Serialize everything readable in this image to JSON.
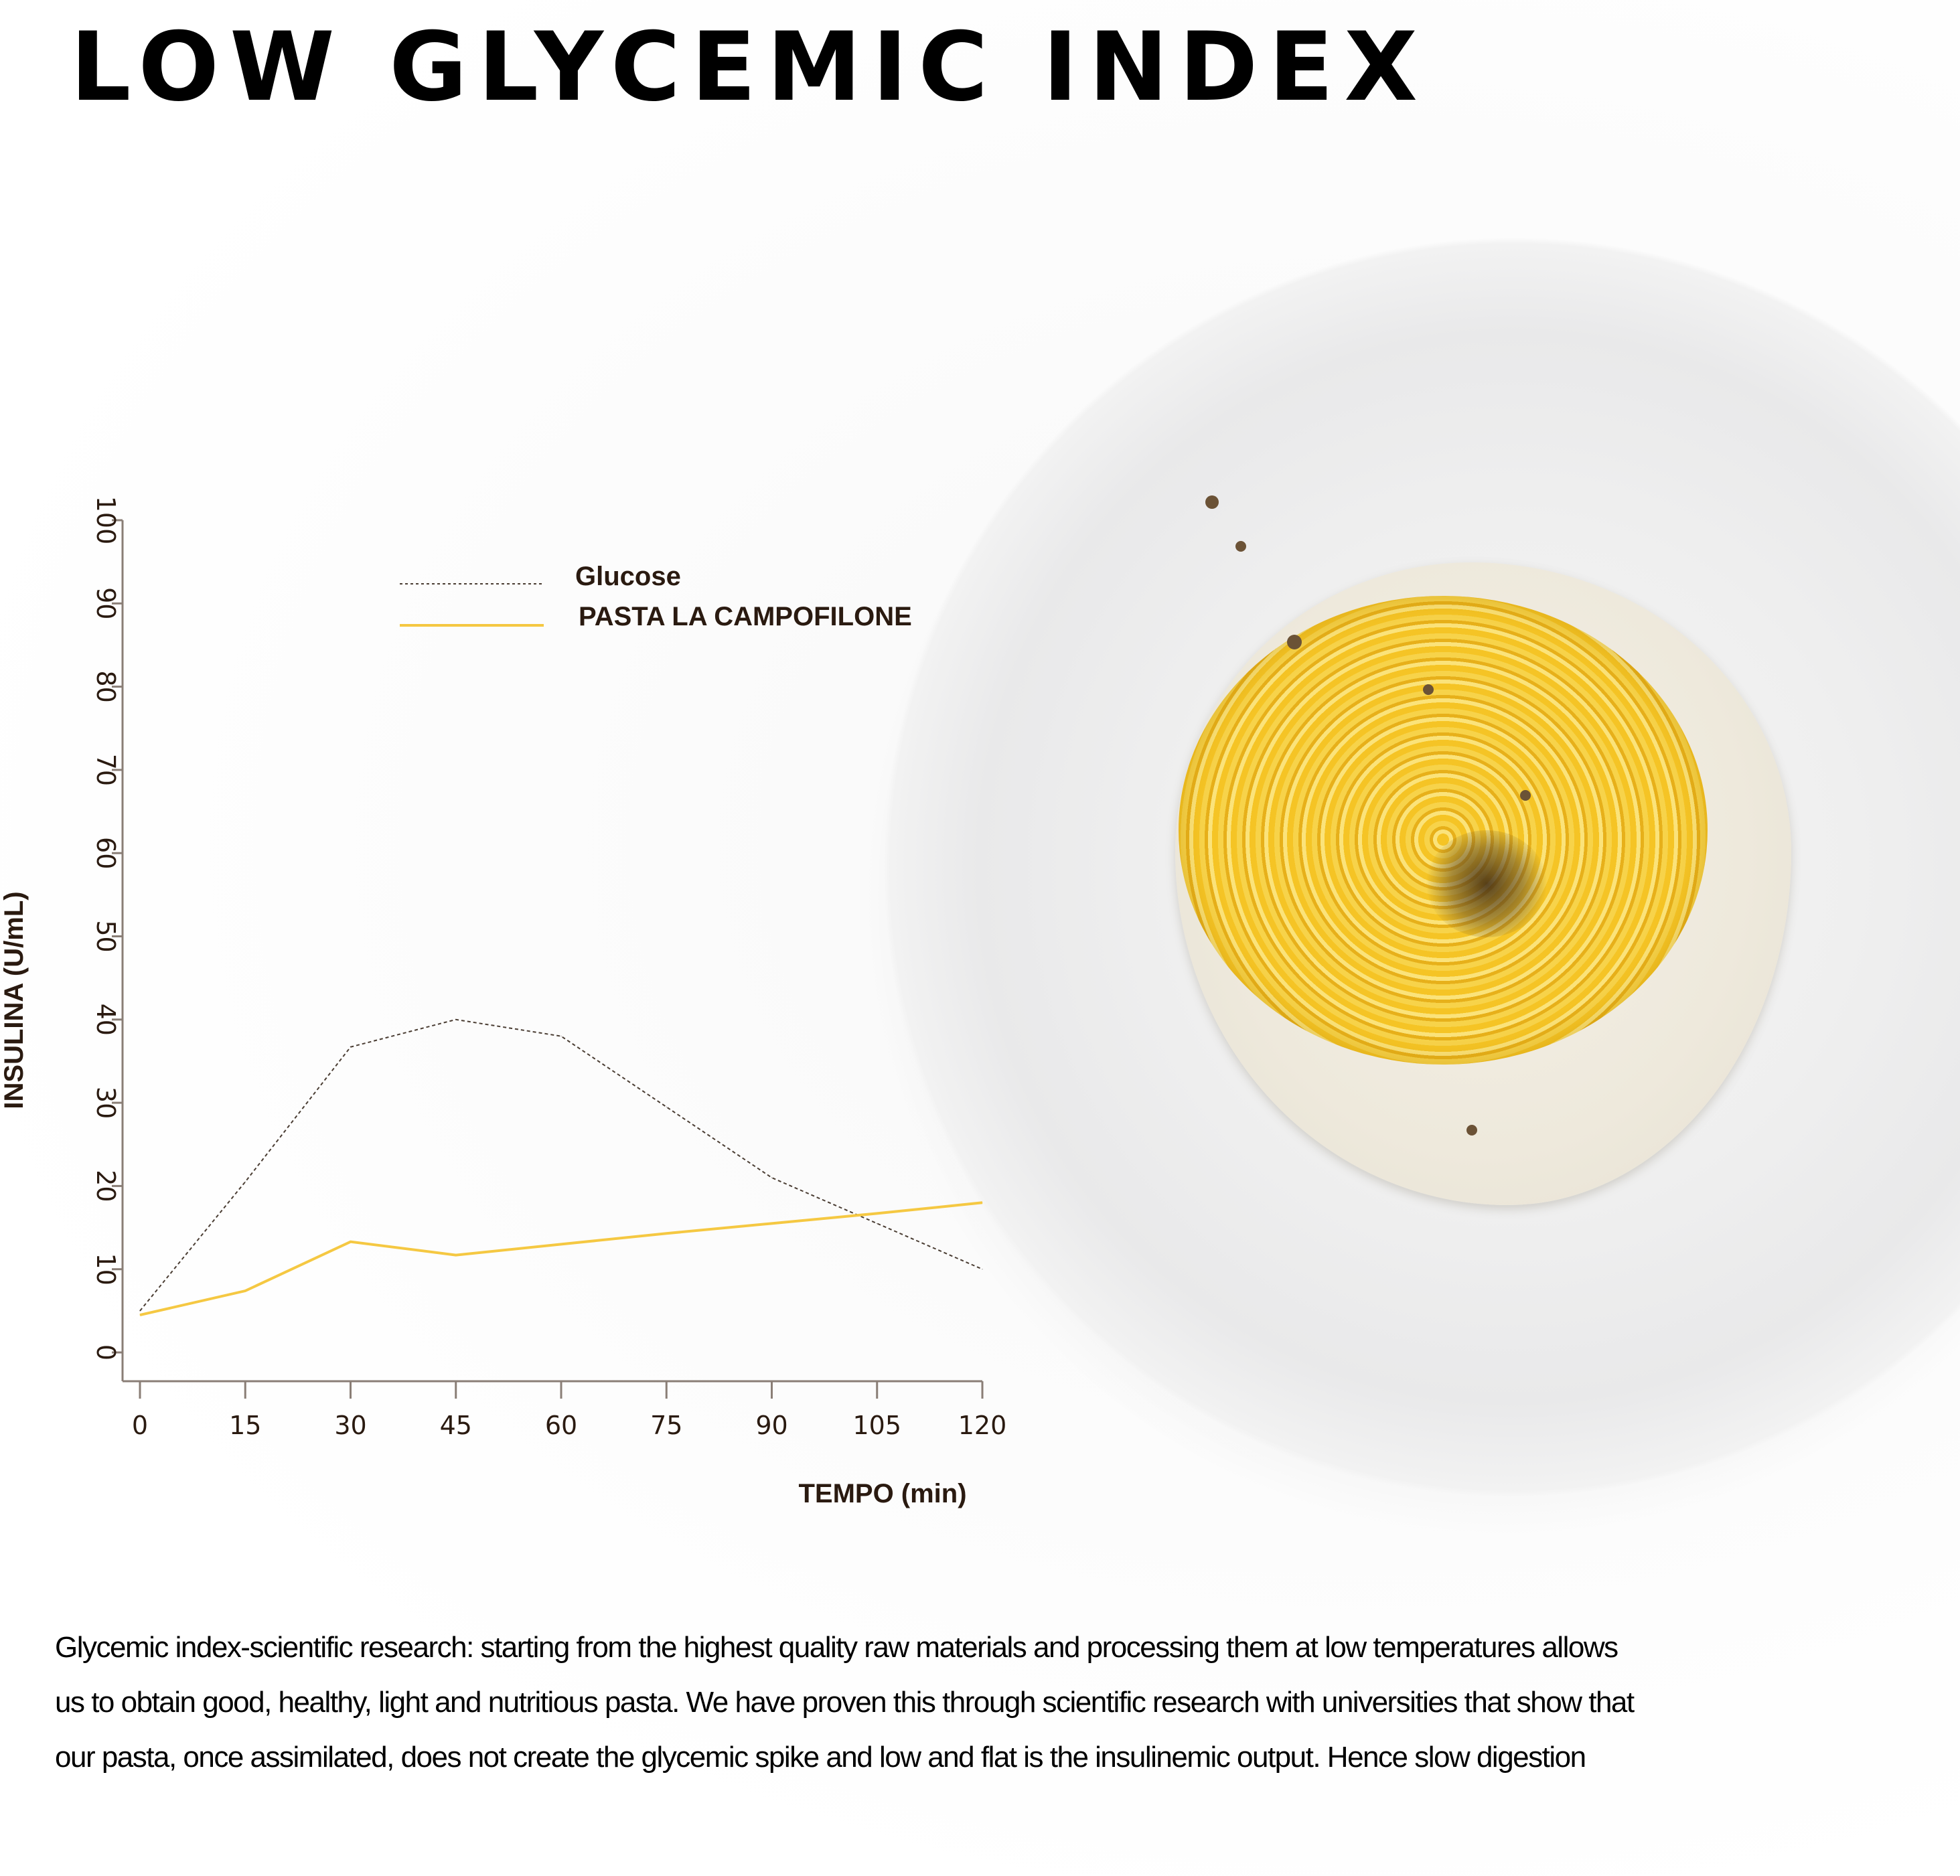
{
  "title": "LOW GLYCEMIC INDEX",
  "paragraph_lines": [
    "Glycemic index-scientific research: starting from the highest quality raw materials and processing them at low temperatures allows",
    "us to obtain good, healthy, light and nutritious pasta. We have proven this through scientific research with universities that show that",
    "our pasta, once assimilated, does not create the glycemic spike and low and flat is the insulinemic output. Hence slow digestion"
  ],
  "chart_data": {
    "type": "line",
    "xlabel": "TEMPO (min)",
    "ylabel": "INSULINA (U/mL)",
    "x": [
      0,
      15,
      30,
      45,
      60,
      75,
      90,
      105,
      120
    ],
    "xlim": [
      0,
      120
    ],
    "ylim": [
      0,
      100
    ],
    "xticks": [
      "0",
      "15",
      "30",
      "45",
      "60",
      "75",
      "90",
      "105",
      "120"
    ],
    "yticks": [
      "0",
      "10",
      "20",
      "30",
      "40",
      "50",
      "60",
      "70",
      "80",
      "90",
      "100"
    ],
    "grid": false,
    "legend_position": "top",
    "series": [
      {
        "name": "Glucose",
        "color": "#4a3d33",
        "style": "dotted",
        "values": [
          5,
          20.5,
          36.7,
          40,
          38,
          29.5,
          21,
          15.5,
          10
        ]
      },
      {
        "name": "PASTA LA CAMPOFILONE",
        "color": "#f5c842",
        "style": "solid",
        "values": [
          4.5,
          7.4,
          13.3,
          11.7,
          13,
          14.3,
          15.5,
          16.7,
          18
        ]
      }
    ]
  }
}
